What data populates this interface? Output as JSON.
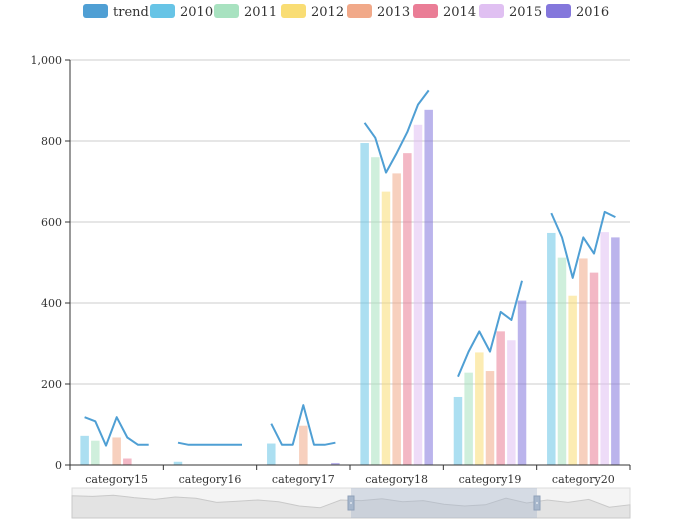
{
  "chart_data": {
    "type": "bar",
    "categories": [
      "category15",
      "category16",
      "category17",
      "category18",
      "category19",
      "category20"
    ],
    "series": [
      {
        "name": "2010",
        "color": "#67c4e6",
        "values": [
          72,
          8,
          53,
          795,
          168,
          573
        ]
      },
      {
        "name": "2011",
        "color": "#a8e2c0",
        "values": [
          60,
          0,
          0,
          760,
          228,
          512
        ]
      },
      {
        "name": "2012",
        "color": "#f9dd74",
        "values": [
          0,
          0,
          0,
          675,
          278,
          418
        ]
      },
      {
        "name": "2013",
        "color": "#f1a989",
        "values": [
          68,
          0,
          97,
          720,
          232,
          510
        ]
      },
      {
        "name": "2014",
        "color": "#ea7d96",
        "values": [
          16,
          0,
          0,
          770,
          330,
          475
        ]
      },
      {
        "name": "2015",
        "color": "#e0c0f2",
        "values": [
          0,
          0,
          0,
          840,
          308,
          575
        ]
      },
      {
        "name": "2016",
        "color": "#8477dc",
        "values": [
          0,
          0,
          5,
          877,
          406,
          562
        ]
      }
    ],
    "trend": {
      "name": "trend",
      "color": "#4f9fd4",
      "values": [
        [
          118,
          108,
          48,
          118,
          68,
          50,
          50
        ],
        [
          55,
          50,
          50,
          50,
          50,
          50,
          50
        ],
        [
          102,
          50,
          50,
          148,
          50,
          50,
          55
        ],
        [
          845,
          808,
          722,
          770,
          822,
          890,
          925
        ],
        [
          218,
          280,
          330,
          280,
          378,
          358,
          455
        ],
        [
          622,
          562,
          462,
          562,
          522,
          625,
          612
        ]
      ]
    },
    "legend": {
      "position": "top",
      "items": [
        "trend",
        "2010",
        "2011",
        "2012",
        "2013",
        "2014",
        "2015",
        "2016"
      ]
    },
    "ylim": [
      0,
      1000
    ],
    "yticks": [
      "0",
      "200",
      "400",
      "600",
      "800",
      "1,000"
    ],
    "ytick_values": [
      0,
      200,
      400,
      600,
      800,
      1000
    ],
    "grid": true,
    "datazoom": {
      "selected_range": [
        "category18",
        "category19"
      ],
      "overview": [
        0.74,
        0.72,
        0.76,
        0.68,
        0.62,
        0.7,
        0.66,
        0.52,
        0.56,
        0.6,
        0.54,
        0.4,
        0.34,
        0.6,
        0.58,
        0.64,
        0.54,
        0.58,
        0.46,
        0.4,
        0.44,
        0.66,
        0.5,
        0.6,
        0.52,
        0.62,
        0.36,
        0.44
      ]
    }
  }
}
